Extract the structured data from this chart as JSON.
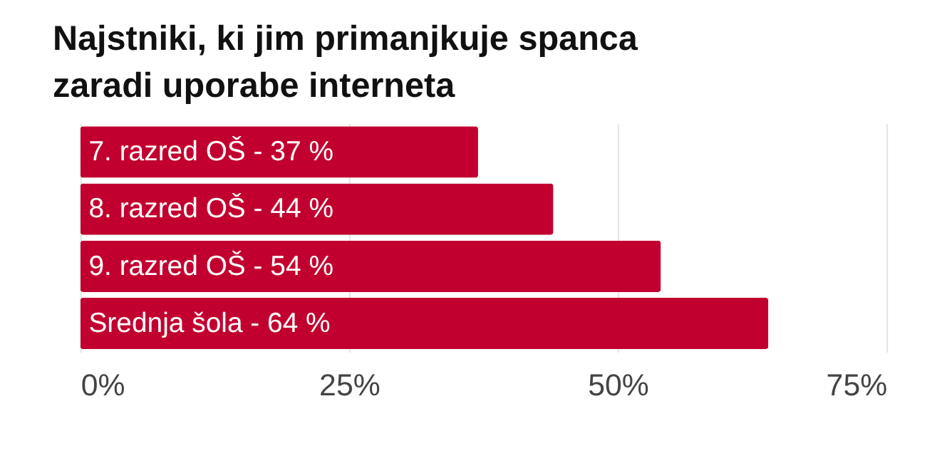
{
  "chart_data": {
    "type": "bar",
    "orientation": "horizontal",
    "title": [
      "Najstniki, ki jim primanjkuje spanca",
      "zaradi uporabe interneta"
    ],
    "categories": [
      "7. razred OŠ - 37 %",
      "8. razred OŠ - 44 %",
      "9. razred OŠ - 54 %",
      "Srednja šola - 64 %"
    ],
    "values": [
      37,
      44,
      54,
      64
    ],
    "color": "#c2002f",
    "xlim": [
      0,
      75
    ],
    "xticks": [
      {
        "value": 0,
        "label": "0%"
      },
      {
        "value": 25,
        "label": "25%"
      },
      {
        "value": 50,
        "label": "50%"
      },
      {
        "value": 75,
        "label": "75%"
      }
    ],
    "grid": "x",
    "tick_labels": "x"
  }
}
